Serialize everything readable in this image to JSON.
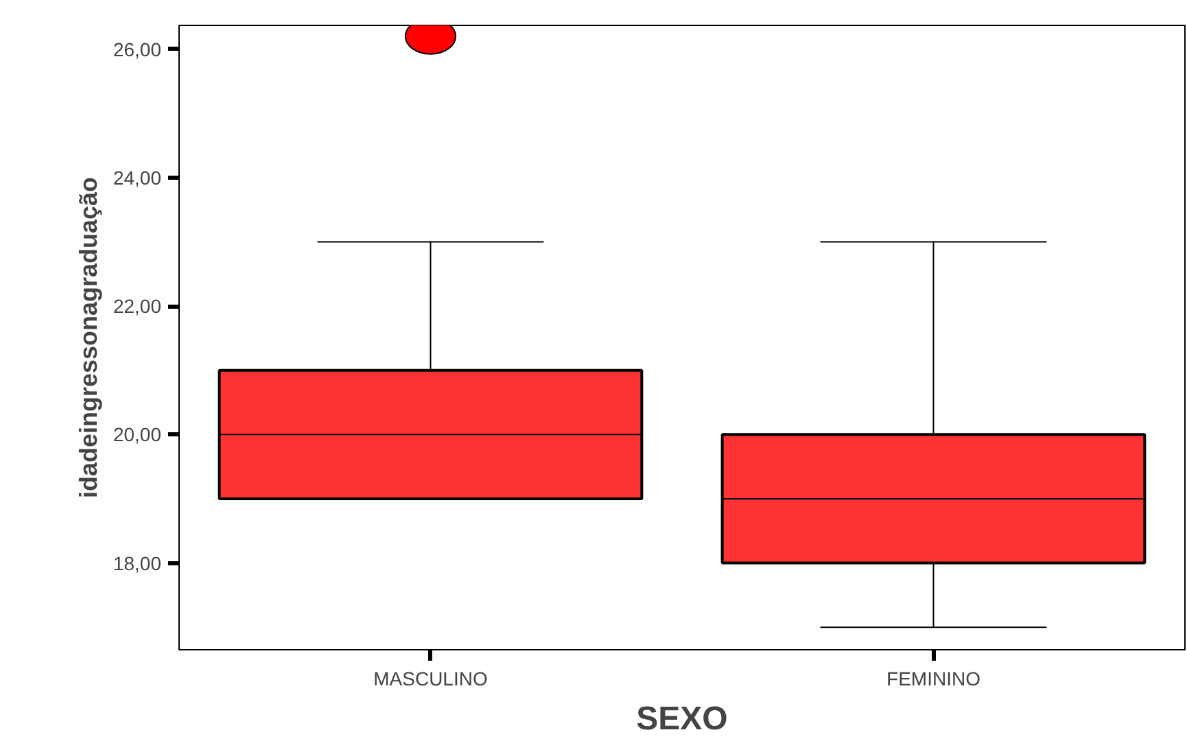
{
  "chart_data": {
    "type": "box",
    "xlabel": "SEXO",
    "ylabel": "idadeingressonagraduação",
    "categories": [
      "MASCULINO",
      "FEMININO"
    ],
    "boxes": [
      {
        "low": 19,
        "q1": 19,
        "median": 20,
        "q3": 21,
        "high": 23,
        "outliers": [
          26.2
        ]
      },
      {
        "low": 17,
        "q1": 18,
        "median": 19,
        "q3": 20,
        "high": 23
      }
    ],
    "color": "#ff3333",
    "ylim": [
      16.65,
      26.37
    ],
    "yticks": [
      {
        "value": 18,
        "label": "18,00"
      },
      {
        "value": 20,
        "label": "20,00"
      },
      {
        "value": 22,
        "label": "22,00"
      },
      {
        "value": 24,
        "label": "24,00"
      },
      {
        "value": 26,
        "label": "26,00"
      }
    ],
    "grid": false
  }
}
